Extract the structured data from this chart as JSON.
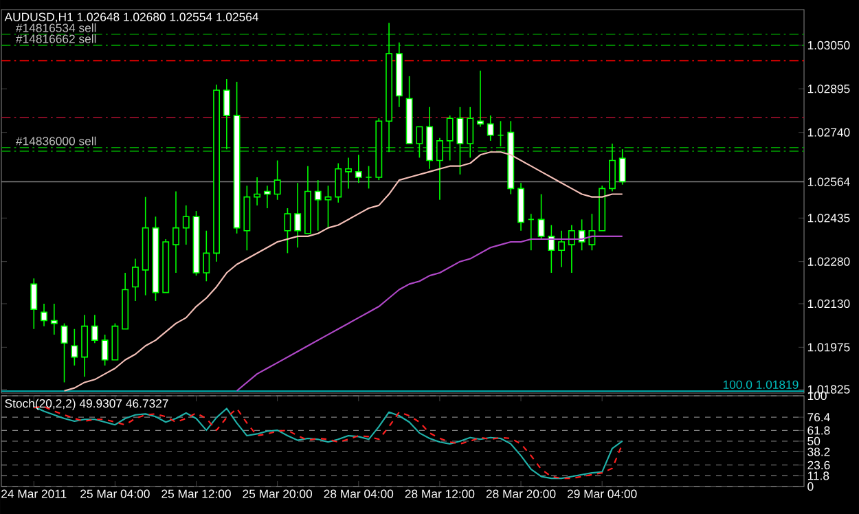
{
  "chart_data": [
    {
      "type": "candlestick",
      "title": "AUDUSD,H1  1.02648 1.02680 1.02554 1.02564",
      "categories": [
        null,
        null,
        null,
        null,
        null,
        null,
        null,
        null,
        null,
        null,
        null,
        null,
        null,
        null,
        null,
        null,
        null,
        null,
        null,
        null,
        null,
        null,
        null,
        null,
        null,
        null,
        null,
        null,
        null,
        null,
        null,
        null,
        null,
        null,
        null,
        null,
        null,
        null,
        null,
        null,
        null,
        null,
        null,
        null,
        null,
        null,
        null,
        null,
        null,
        null,
        null,
        null,
        null,
        null,
        null,
        null,
        null,
        null,
        null
      ],
      "ylim": [
        1.01812,
        1.03177
      ],
      "tick_labels": "y",
      "yticks": [
        {
          "value": 1.0305,
          "label": "1.03050"
        },
        {
          "value": 1.02895,
          "label": "1.02895"
        },
        {
          "value": 1.0274,
          "label": "1.02740"
        },
        {
          "value": 1.02564,
          "label": "1.02564"
        },
        {
          "value": 1.02435,
          "label": "1.02435"
        },
        {
          "value": 1.0228,
          "label": "1.02280"
        },
        {
          "value": 1.0213,
          "label": "1.02130"
        },
        {
          "value": 1.01975,
          "label": "1.01975"
        },
        {
          "value": 1.01825,
          "label": "1.01825"
        }
      ],
      "series": [
        {
          "type": "candlestick",
          "color": "#00ff00",
          "ohlc": [
            [
              1.022,
              1.0222,
              1.0204,
              1.0211
            ],
            [
              1.021,
              1.0213,
              1.0205,
              1.0207
            ],
            [
              1.0207,
              1.0213,
              1.0202,
              1.0206
            ],
            [
              1.0205,
              1.0206,
              1.0185,
              1.0199
            ],
            [
              1.0198,
              1.0204,
              1.0191,
              1.0194
            ],
            [
              1.0194,
              1.0209,
              1.0187,
              1.0205
            ],
            [
              1.0205,
              1.0209,
              1.0199,
              1.02
            ],
            [
              1.02,
              1.0202,
              1.0191,
              1.0193
            ],
            [
              1.0193,
              1.0206,
              1.0193,
              1.0205
            ],
            [
              1.0204,
              1.0224,
              1.0204,
              1.0218
            ],
            [
              1.0219,
              1.0229,
              1.0214,
              1.0226
            ],
            [
              1.0225,
              1.0251,
              1.0216,
              1.024
            ],
            [
              1.024,
              1.0244,
              1.0214,
              1.0217
            ],
            [
              1.0217,
              1.0236,
              1.0217,
              1.0235
            ],
            [
              1.0234,
              1.0253,
              1.0224,
              1.024
            ],
            [
              1.024,
              1.0248,
              1.0234,
              1.0244
            ],
            [
              1.0244,
              1.0246,
              1.0223,
              1.0224
            ],
            [
              1.0224,
              1.0239,
              1.0221,
              1.0231
            ],
            [
              1.0231,
              1.0291,
              1.0228,
              1.0289
            ],
            [
              1.0289,
              1.0293,
              1.0268,
              1.028
            ],
            [
              1.028,
              1.0292,
              1.0238,
              1.024
            ],
            [
              1.0239,
              1.0255,
              1.0232,
              1.0251
            ],
            [
              1.0251,
              1.0258,
              1.0248,
              1.0252
            ],
            [
              1.0253,
              1.0255,
              1.0247,
              1.0252
            ],
            [
              1.0252,
              1.0264,
              1.025,
              1.0257
            ],
            [
              1.0239,
              1.0247,
              1.0231,
              1.0245
            ],
            [
              1.0245,
              1.0256,
              1.0233,
              1.0239
            ],
            [
              1.0238,
              1.0262,
              1.0238,
              1.0253
            ],
            [
              1.0253,
              1.0257,
              1.0239,
              1.025
            ],
            [
              1.025,
              1.0255,
              1.024,
              1.0251
            ],
            [
              1.0251,
              1.0263,
              1.0249,
              1.0261
            ],
            [
              1.026,
              1.0265,
              1.0254,
              1.0261
            ],
            [
              1.026,
              1.0266,
              1.0256,
              1.0258
            ],
            [
              1.0258,
              1.0262,
              1.0254,
              1.0258
            ],
            [
              1.0258,
              1.0279,
              1.0257,
              1.0278
            ],
            [
              1.0278,
              1.0313,
              1.0267,
              1.0302
            ],
            [
              1.0302,
              1.0306,
              1.0283,
              1.0287
            ],
            [
              1.0286,
              1.0294,
              1.027,
              1.027
            ],
            [
              1.027,
              1.0276,
              1.0265,
              1.0276
            ],
            [
              1.0276,
              1.0283,
              1.0261,
              1.0264
            ],
            [
              1.0264,
              1.0272,
              1.025,
              1.0271
            ],
            [
              1.0271,
              1.028,
              1.0264,
              1.0279
            ],
            [
              1.0279,
              1.0283,
              1.0259,
              1.027
            ],
            [
              1.027,
              1.0283,
              1.0265,
              1.0279
            ],
            [
              1.0278,
              1.0296,
              1.0276,
              1.0277
            ],
            [
              1.0277,
              1.028,
              1.0271,
              1.0273
            ],
            [
              1.0273,
              1.0278,
              1.0269,
              1.0273
            ],
            [
              1.0274,
              1.0278,
              1.0252,
              1.0254
            ],
            [
              1.0254,
              1.0256,
              1.0239,
              1.0242
            ],
            [
              1.0243,
              1.0245,
              1.0232,
              1.0243
            ],
            [
              1.0243,
              1.0252,
              1.0236,
              1.0237
            ],
            [
              1.0237,
              1.0241,
              1.0224,
              1.0232
            ],
            [
              1.0232,
              1.0239,
              1.0226,
              1.0235
            ],
            [
              1.0234,
              1.0241,
              1.0224,
              1.0239
            ],
            [
              1.0239,
              1.0243,
              1.0232,
              1.0235
            ],
            [
              1.0234,
              1.0245,
              1.0232,
              1.0239
            ],
            [
              1.0239,
              1.0255,
              1.0239,
              1.0254
            ],
            [
              1.0254,
              1.027,
              1.0253,
              1.0264
            ],
            [
              1.02648,
              1.0268,
              1.02554,
              1.02564
            ]
          ]
        },
        {
          "type": "line",
          "color": "#f4c0b8",
          "values": [
            null,
            null,
            null,
            1.0182,
            1.0183,
            1.0185,
            1.0186,
            1.0188,
            1.019,
            1.0193,
            1.0195,
            1.0198,
            1.02,
            1.0203,
            1.0206,
            1.0208,
            1.0212,
            1.0215,
            1.0219,
            1.0224,
            1.0227,
            1.0229,
            1.0231,
            1.0233,
            1.0235,
            1.0236,
            1.0237,
            1.0237,
            1.0238,
            1.024,
            1.0241,
            1.0243,
            1.0245,
            1.0247,
            1.0248,
            1.0252,
            1.0257,
            1.0258,
            1.0259,
            1.026,
            1.0261,
            1.0262,
            1.0262,
            1.0263,
            1.0266,
            1.0267,
            1.0267,
            1.0266,
            1.0264,
            1.0262,
            1.026,
            1.0258,
            1.0256,
            1.0254,
            1.0252,
            1.0251,
            1.0251,
            1.0252,
            1.0252
          ]
        },
        {
          "type": "line",
          "color": "#b048c8",
          "values": [
            null,
            null,
            null,
            null,
            null,
            null,
            null,
            null,
            null,
            null,
            null,
            null,
            null,
            null,
            null,
            null,
            null,
            null,
            null,
            null,
            1.0182,
            1.0185,
            1.0188,
            1.019,
            1.0192,
            1.0194,
            1.0196,
            1.0198,
            1.02,
            1.0202,
            1.0204,
            1.0206,
            1.0208,
            1.021,
            1.0212,
            1.0215,
            1.0218,
            1.022,
            1.0221,
            1.0223,
            1.0224,
            1.0226,
            1.0228,
            1.0229,
            1.0231,
            1.0233,
            1.0234,
            1.0235,
            1.0235,
            1.0236,
            1.0236,
            1.0236,
            1.0236,
            1.0236,
            1.0236,
            1.0237,
            1.0237,
            1.0237,
            1.0237
          ]
        }
      ],
      "ref_lines": [
        {
          "axis": "y",
          "value": 1.03089,
          "label": "#14816534 sell",
          "color": "#00a000",
          "line_style": "dashed"
        },
        {
          "axis": "y",
          "value": 1.0305,
          "label": "#14816662 sell",
          "color": "#00a000",
          "line_style": "dashed"
        },
        {
          "axis": "y",
          "value": 1.02995,
          "color": "#ff0000",
          "line_style": "dashed"
        },
        {
          "axis": "y",
          "value": 1.02793,
          "color": "#b01030",
          "line_style": "dashed"
        },
        {
          "axis": "y",
          "value": 1.02686,
          "label": "#14836000 sell",
          "color": "#00a000",
          "line_style": "dashed"
        },
        {
          "axis": "y",
          "value": 1.02673,
          "color": "#00a000",
          "line_style": "dashed"
        },
        {
          "axis": "y",
          "value": 1.02564,
          "color": "#808080",
          "line_style": "solid"
        },
        {
          "axis": "y",
          "value": 1.01819,
          "label": "100.0 1.01819",
          "color": "#00c0c0",
          "line_style": "solid"
        }
      ]
    },
    {
      "type": "line",
      "title": "Stoch(20,2,2) 49.9307 46.7327",
      "categories": [
        "24 Mar 2011",
        null,
        null,
        null,
        null,
        null,
        null,
        null,
        "25 Mar 04:00",
        null,
        null,
        null,
        null,
        null,
        null,
        null,
        "25 Mar 12:00",
        null,
        null,
        null,
        null,
        null,
        null,
        null,
        "25 Mar 20:00",
        null,
        null,
        null,
        null,
        null,
        null,
        null,
        "28 Mar 04:00",
        null,
        null,
        null,
        null,
        null,
        null,
        null,
        "28 Mar 12:00",
        null,
        null,
        null,
        null,
        null,
        null,
        null,
        "28 Mar 20:00",
        null,
        null,
        null,
        null,
        null,
        null,
        null,
        "29 Mar 04:00",
        null,
        null
      ],
      "ylim": [
        0,
        100
      ],
      "grid": "y",
      "yticks": [
        100,
        76.4,
        61.8,
        50,
        38.2,
        23.6,
        11.8,
        0
      ],
      "series": [
        {
          "color": "#20b2aa",
          "line_style": "solid",
          "values": [
            88,
            83,
            79,
            75,
            72,
            74,
            74,
            71,
            68,
            75,
            79,
            80,
            77,
            71,
            75,
            81,
            75,
            62,
            76,
            86,
            70,
            56,
            58,
            61,
            62,
            56,
            51,
            53,
            52,
            49,
            52,
            56,
            55,
            52,
            66,
            82,
            78,
            71,
            59,
            53,
            49,
            47,
            50,
            54,
            52,
            54,
            53,
            47,
            34,
            19,
            11,
            9,
            9,
            11,
            13,
            15,
            16,
            42,
            50
          ]
        },
        {
          "color": "#ff2020",
          "line_style": "dashed",
          "values": [
            87,
            88,
            83,
            79,
            75,
            72,
            74,
            74,
            71,
            68,
            75,
            79,
            80,
            77,
            71,
            75,
            81,
            75,
            62,
            76,
            86,
            70,
            56,
            58,
            61,
            62,
            56,
            51,
            53,
            52,
            49,
            52,
            56,
            55,
            52,
            66,
            82,
            78,
            71,
            59,
            53,
            49,
            47,
            50,
            54,
            52,
            54,
            53,
            47,
            34,
            19,
            11,
            9,
            9,
            11,
            13,
            15,
            20,
            47
          ]
        }
      ]
    }
  ]
}
